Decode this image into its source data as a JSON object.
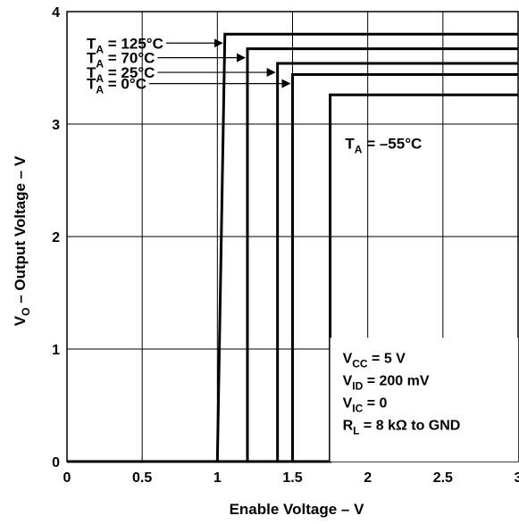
{
  "chart_data": {
    "type": "line",
    "title": "",
    "xlabel": "Enable Voltage – V",
    "ylabel": {
      "main": "V",
      "sub": "O",
      "rest": " – Output Voltage – V"
    },
    "xlim": [
      0,
      3
    ],
    "ylim": [
      0,
      4
    ],
    "grid": true,
    "x_ticks": [
      {
        "value": 0,
        "label": "0"
      },
      {
        "value": 0.5,
        "label": "0.5"
      },
      {
        "value": 1,
        "label": "1"
      },
      {
        "value": 1.5,
        "label": "1.5"
      },
      {
        "value": 2,
        "label": "2"
      },
      {
        "value": 2.5,
        "label": "2.5"
      },
      {
        "value": 3,
        "label": "3"
      }
    ],
    "y_ticks": [
      {
        "value": 0,
        "label": "0"
      },
      {
        "value": 1,
        "label": "1"
      },
      {
        "value": 2,
        "label": "2"
      },
      {
        "value": 3,
        "label": "3"
      },
      {
        "value": 4,
        "label": "4"
      }
    ],
    "series": [
      {
        "name": "TA = 125°C",
        "label": {
          "main": "T",
          "sub": "A",
          "rest": " = 125°C"
        },
        "x_switch_low": 1.0,
        "x_switch_high": 1.05,
        "y_high": 3.8
      },
      {
        "name": "TA = 70°C",
        "label": {
          "main": "T",
          "sub": "A",
          "rest": " = 70°C"
        },
        "x_switch_low": 1.2,
        "x_switch_high": 1.2,
        "y_high": 3.67
      },
      {
        "name": "TA = 25°C",
        "label": {
          "main": "T",
          "sub": "A",
          "rest": " = 25°C"
        },
        "x_switch_low": 1.4,
        "x_switch_high": 1.4,
        "y_high": 3.54
      },
      {
        "name": "TA = 0°C",
        "label": {
          "main": "T",
          "sub": "A",
          "rest": " = 0°C"
        },
        "x_switch_low": 1.5,
        "x_switch_high": 1.5,
        "y_high": 3.44
      },
      {
        "name": "TA = –55°C",
        "label": {
          "main": "T",
          "sub": "A",
          "rest": " = –55°C"
        },
        "x_switch_low": 1.75,
        "x_switch_high": 1.75,
        "y_high": 3.26
      }
    ],
    "conditions": [
      {
        "main": "V",
        "sub": "CC",
        "rest": " = 5 V"
      },
      {
        "main": "V",
        "sub": "ID",
        "rest": " = 200 mV"
      },
      {
        "main": "V",
        "sub": "IC",
        "rest": " = 0"
      },
      {
        "main": "R",
        "sub": "L",
        "rest": " = 8 kΩ to GND"
      }
    ]
  }
}
